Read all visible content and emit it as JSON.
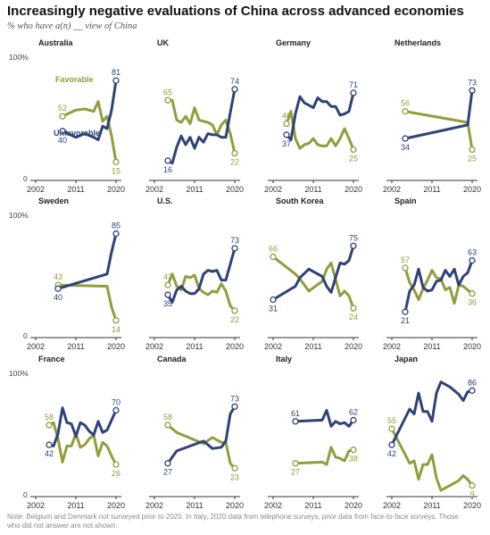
{
  "title": "Increasingly negative evaluations of China across advanced economies",
  "subtitle": "% who have a(n) __ view of China",
  "note": "Note: Belgium and Denmark not surveyed prior to 2020. In Italy, 2020 data from telephone surveys, prior data from face-to-face surveys. Those who did not answer are not shown.",
  "colors": {
    "favorable": "#8f9f3b",
    "unfavorable": "#2e4278"
  },
  "chart_data": [
    {
      "type": "line",
      "title": "Australia",
      "xlim": [
        2002,
        2020
      ],
      "ylim": [
        0,
        100
      ],
      "xticks": [
        "2002",
        "2011",
        "2020"
      ],
      "ytick_labels": [
        "100%",
        "0"
      ],
      "series": [
        {
          "name": "Favorable",
          "x": [
            2008,
            2011,
            2013,
            2015,
            2016,
            2017,
            2018,
            2019,
            2020
          ],
          "values": [
            52,
            57,
            58,
            56,
            64,
            48,
            52,
            36,
            15
          ],
          "start_label": "52",
          "end_label": "15"
        },
        {
          "name": "Unfavorable",
          "x": [
            2008,
            2011,
            2013,
            2015,
            2016,
            2017,
            2018,
            2019,
            2020
          ],
          "values": [
            40,
            35,
            38,
            35,
            33,
            44,
            42,
            57,
            81
          ],
          "start_label": "40",
          "end_label": "81"
        }
      ]
    },
    {
      "type": "line",
      "title": "UK",
      "xlim": [
        2002,
        2020
      ],
      "ylim": [
        0,
        100
      ],
      "xticks": [
        "2002",
        "2011",
        "2020"
      ],
      "series": [
        {
          "name": "Favorable",
          "x": [
            2005,
            2006,
            2007,
            2008,
            2009,
            2010,
            2011,
            2012,
            2013,
            2014,
            2015,
            2016,
            2017,
            2018,
            2019,
            2020
          ],
          "values": [
            65,
            65,
            49,
            47,
            52,
            46,
            59,
            49,
            48,
            47,
            45,
            37,
            45,
            49,
            38,
            22
          ],
          "start_label": "65",
          "end_label": "22"
        },
        {
          "name": "Unfavorable",
          "x": [
            2005,
            2006,
            2007,
            2008,
            2009,
            2010,
            2011,
            2012,
            2013,
            2014,
            2015,
            2016,
            2017,
            2018,
            2019,
            2020
          ],
          "values": [
            16,
            14,
            27,
            36,
            29,
            35,
            26,
            35,
            31,
            38,
            37,
            37,
            35,
            35,
            55,
            74
          ],
          "start_label": "16",
          "end_label": "74"
        }
      ]
    },
    {
      "type": "line",
      "title": "Germany",
      "xlim": [
        2002,
        2020
      ],
      "ylim": [
        0,
        100
      ],
      "xticks": [
        "2002",
        "2011",
        "2020"
      ],
      "series": [
        {
          "name": "Favorable",
          "x": [
            2005,
            2006,
            2007,
            2008,
            2009,
            2010,
            2011,
            2012,
            2013,
            2014,
            2015,
            2016,
            2017,
            2018,
            2019,
            2020
          ],
          "values": [
            46,
            56,
            34,
            26,
            29,
            30,
            34,
            29,
            28,
            28,
            34,
            28,
            34,
            42,
            34,
            25
          ],
          "start_label": "46",
          "end_label": "25"
        },
        {
          "name": "Unfavorable",
          "x": [
            2005,
            2006,
            2007,
            2008,
            2009,
            2010,
            2011,
            2012,
            2013,
            2014,
            2015,
            2016,
            2017,
            2018,
            2019,
            2020
          ],
          "values": [
            37,
            33,
            54,
            68,
            63,
            61,
            59,
            67,
            64,
            64,
            60,
            60,
            53,
            54,
            56,
            71
          ],
          "start_label": "37",
          "end_label": "71"
        }
      ]
    },
    {
      "type": "line",
      "title": "Netherlands",
      "xlim": [
        2002,
        2020
      ],
      "ylim": [
        0,
        100
      ],
      "xticks": [
        "2002",
        "2011",
        "2020"
      ],
      "series": [
        {
          "name": "Favorable",
          "x": [
            2005,
            2019,
            2020
          ],
          "values": [
            56,
            47,
            25
          ],
          "start_label": "56",
          "end_label": "25"
        },
        {
          "name": "Unfavorable",
          "x": [
            2005,
            2019,
            2020
          ],
          "values": [
            34,
            45,
            73
          ],
          "start_label": "34",
          "end_label": "73"
        }
      ]
    },
    {
      "type": "line",
      "title": "Sweden",
      "xlim": [
        2002,
        2020
      ],
      "ylim": [
        0,
        100
      ],
      "xticks": [
        "2002",
        "2011",
        "2020"
      ],
      "ytick_labels": [
        "100%",
        "0"
      ],
      "series": [
        {
          "name": "Favorable",
          "x": [
            2007,
            2018,
            2019,
            2020
          ],
          "values": [
            43,
            42,
            25,
            14
          ],
          "start_label": "43",
          "end_label": "14"
        },
        {
          "name": "Unfavorable",
          "x": [
            2007,
            2018,
            2019,
            2020
          ],
          "values": [
            40,
            52,
            70,
            85
          ],
          "start_label": "40",
          "end_label": "85"
        }
      ]
    },
    {
      "type": "line",
      "title": "U.S.",
      "xlim": [
        2002,
        2020
      ],
      "ylim": [
        0,
        100
      ],
      "xticks": [
        "2002",
        "2011",
        "2020"
      ],
      "series": [
        {
          "name": "Favorable",
          "x": [
            2005,
            2006,
            2007,
            2008,
            2009,
            2010,
            2011,
            2012,
            2013,
            2014,
            2015,
            2016,
            2017,
            2018,
            2019,
            2020
          ],
          "values": [
            43,
            52,
            42,
            39,
            50,
            49,
            51,
            40,
            37,
            35,
            38,
            37,
            44,
            38,
            26,
            22
          ],
          "start_label": "43",
          "end_label": "22"
        },
        {
          "name": "Unfavorable",
          "x": [
            2005,
            2006,
            2007,
            2008,
            2009,
            2010,
            2011,
            2012,
            2013,
            2014,
            2015,
            2016,
            2017,
            2018,
            2019,
            2020
          ],
          "values": [
            35,
            29,
            39,
            42,
            38,
            36,
            36,
            40,
            52,
            55,
            54,
            55,
            47,
            47,
            60,
            73
          ],
          "start_label": "35",
          "end_label": "73"
        }
      ]
    },
    {
      "type": "line",
      "title": "South Korea",
      "xlim": [
        2002,
        2020
      ],
      "ylim": [
        0,
        100
      ],
      "xticks": [
        "2002",
        "2011",
        "2020"
      ],
      "series": [
        {
          "name": "Favorable",
          "x": [
            2002,
            2007,
            2008,
            2010,
            2013,
            2014,
            2015,
            2017,
            2018,
            2019,
            2020
          ],
          "values": [
            66,
            52,
            48,
            38,
            46,
            56,
            61,
            34,
            38,
            34,
            24
          ],
          "start_label": "66",
          "end_label": "24"
        },
        {
          "name": "Unfavorable",
          "x": [
            2002,
            2007,
            2008,
            2010,
            2013,
            2014,
            2015,
            2017,
            2018,
            2019,
            2020
          ],
          "values": [
            31,
            42,
            49,
            56,
            50,
            42,
            37,
            61,
            60,
            63,
            75
          ],
          "start_label": "31",
          "end_label": "75"
        }
      ]
    },
    {
      "type": "line",
      "title": "Spain",
      "xlim": [
        2002,
        2020
      ],
      "ylim": [
        0,
        100
      ],
      "xticks": [
        "2002",
        "2011",
        "2020"
      ],
      "series": [
        {
          "name": "Favorable",
          "x": [
            2005,
            2006,
            2007,
            2008,
            2009,
            2010,
            2011,
            2012,
            2013,
            2014,
            2015,
            2016,
            2017,
            2018,
            2019,
            2020
          ],
          "values": [
            57,
            45,
            39,
            31,
            40,
            47,
            55,
            49,
            48,
            39,
            41,
            28,
            43,
            42,
            39,
            36
          ],
          "start_label": "57",
          "end_label": "36"
        },
        {
          "name": "Unfavorable",
          "x": [
            2005,
            2006,
            2007,
            2008,
            2009,
            2010,
            2011,
            2012,
            2013,
            2014,
            2015,
            2016,
            2017,
            2018,
            2019,
            2020
          ],
          "values": [
            21,
            38,
            43,
            56,
            41,
            38,
            39,
            46,
            47,
            55,
            50,
            56,
            43,
            50,
            53,
            63
          ],
          "start_label": "21",
          "end_label": "63"
        }
      ]
    },
    {
      "type": "line",
      "title": "France",
      "xlim": [
        2002,
        2020
      ],
      "ylim": [
        0,
        100
      ],
      "xticks": [
        "2002",
        "2011",
        "2020"
      ],
      "ytick_labels": [
        "100%",
        "0"
      ],
      "series": [
        {
          "name": "Favorable",
          "x": [
            2005,
            2006,
            2007,
            2008,
            2009,
            2010,
            2011,
            2012,
            2013,
            2014,
            2015,
            2016,
            2017,
            2018,
            2019,
            2020
          ],
          "values": [
            58,
            60,
            47,
            28,
            41,
            41,
            51,
            40,
            42,
            47,
            50,
            33,
            44,
            41,
            33,
            26
          ],
          "start_label": "58",
          "end_label": "26"
        },
        {
          "name": "Unfavorable",
          "x": [
            2005,
            2006,
            2007,
            2008,
            2009,
            2010,
            2011,
            2012,
            2013,
            2014,
            2015,
            2016,
            2017,
            2018,
            2019,
            2020
          ],
          "values": [
            42,
            41,
            51,
            72,
            60,
            59,
            49,
            60,
            58,
            53,
            50,
            61,
            52,
            54,
            62,
            70
          ],
          "start_label": "42",
          "end_label": "70"
        }
      ]
    },
    {
      "type": "line",
      "title": "Canada",
      "xlim": [
        2002,
        2020
      ],
      "ylim": [
        0,
        100
      ],
      "xticks": [
        "2002",
        "2011",
        "2020"
      ],
      "series": [
        {
          "name": "Favorable",
          "x": [
            2005,
            2007,
            2013,
            2015,
            2017,
            2018,
            2019,
            2020
          ],
          "values": [
            58,
            52,
            43,
            48,
            44,
            44,
            27,
            23
          ],
          "start_label": "58",
          "end_label": "23"
        },
        {
          "name": "Unfavorable",
          "x": [
            2005,
            2007,
            2013,
            2015,
            2017,
            2018,
            2019,
            2020
          ],
          "values": [
            27,
            37,
            45,
            39,
            40,
            45,
            67,
            73
          ],
          "start_label": "27",
          "end_label": "73"
        }
      ]
    },
    {
      "type": "line",
      "title": "Italy",
      "xlim": [
        2002,
        2020
      ],
      "ylim": [
        0,
        100
      ],
      "xticks": [
        "2002",
        "2011",
        "2020"
      ],
      "series": [
        {
          "name": "Favorable",
          "x": [
            2007,
            2013,
            2014,
            2015,
            2016,
            2017,
            2018,
            2019,
            2020
          ],
          "values": [
            27,
            28,
            26,
            40,
            32,
            31,
            29,
            37,
            38
          ],
          "start_label": "27",
          "end_label": "38"
        },
        {
          "name": "Unfavorable",
          "x": [
            2007,
            2013,
            2014,
            2015,
            2016,
            2017,
            2018,
            2019,
            2020
          ],
          "values": [
            61,
            62,
            70,
            57,
            61,
            59,
            60,
            57,
            62
          ],
          "start_label": "61",
          "end_label": "62"
        }
      ]
    },
    {
      "type": "line",
      "title": "Japan",
      "xlim": [
        2002,
        2020
      ],
      "ylim": [
        0,
        100
      ],
      "xticks": [
        "2002",
        "2011",
        "2020"
      ],
      "series": [
        {
          "name": "Favorable",
          "x": [
            2002,
            2006,
            2007,
            2008,
            2009,
            2010,
            2011,
            2012,
            2013,
            2014,
            2015,
            2016,
            2017,
            2018,
            2019,
            2020
          ],
          "values": [
            55,
            27,
            29,
            14,
            26,
            26,
            34,
            15,
            5,
            7,
            9,
            11,
            13,
            17,
            14,
            9
          ],
          "start_label": "55",
          "end_label": "9"
        },
        {
          "name": "Unfavorable",
          "x": [
            2002,
            2006,
            2007,
            2008,
            2009,
            2010,
            2011,
            2012,
            2013,
            2014,
            2015,
            2016,
            2017,
            2018,
            2019,
            2020
          ],
          "values": [
            42,
            71,
            67,
            84,
            69,
            69,
            61,
            84,
            93,
            91,
            89,
            86,
            83,
            78,
            85,
            86
          ],
          "start_label": "42",
          "end_label": "86"
        }
      ]
    }
  ]
}
